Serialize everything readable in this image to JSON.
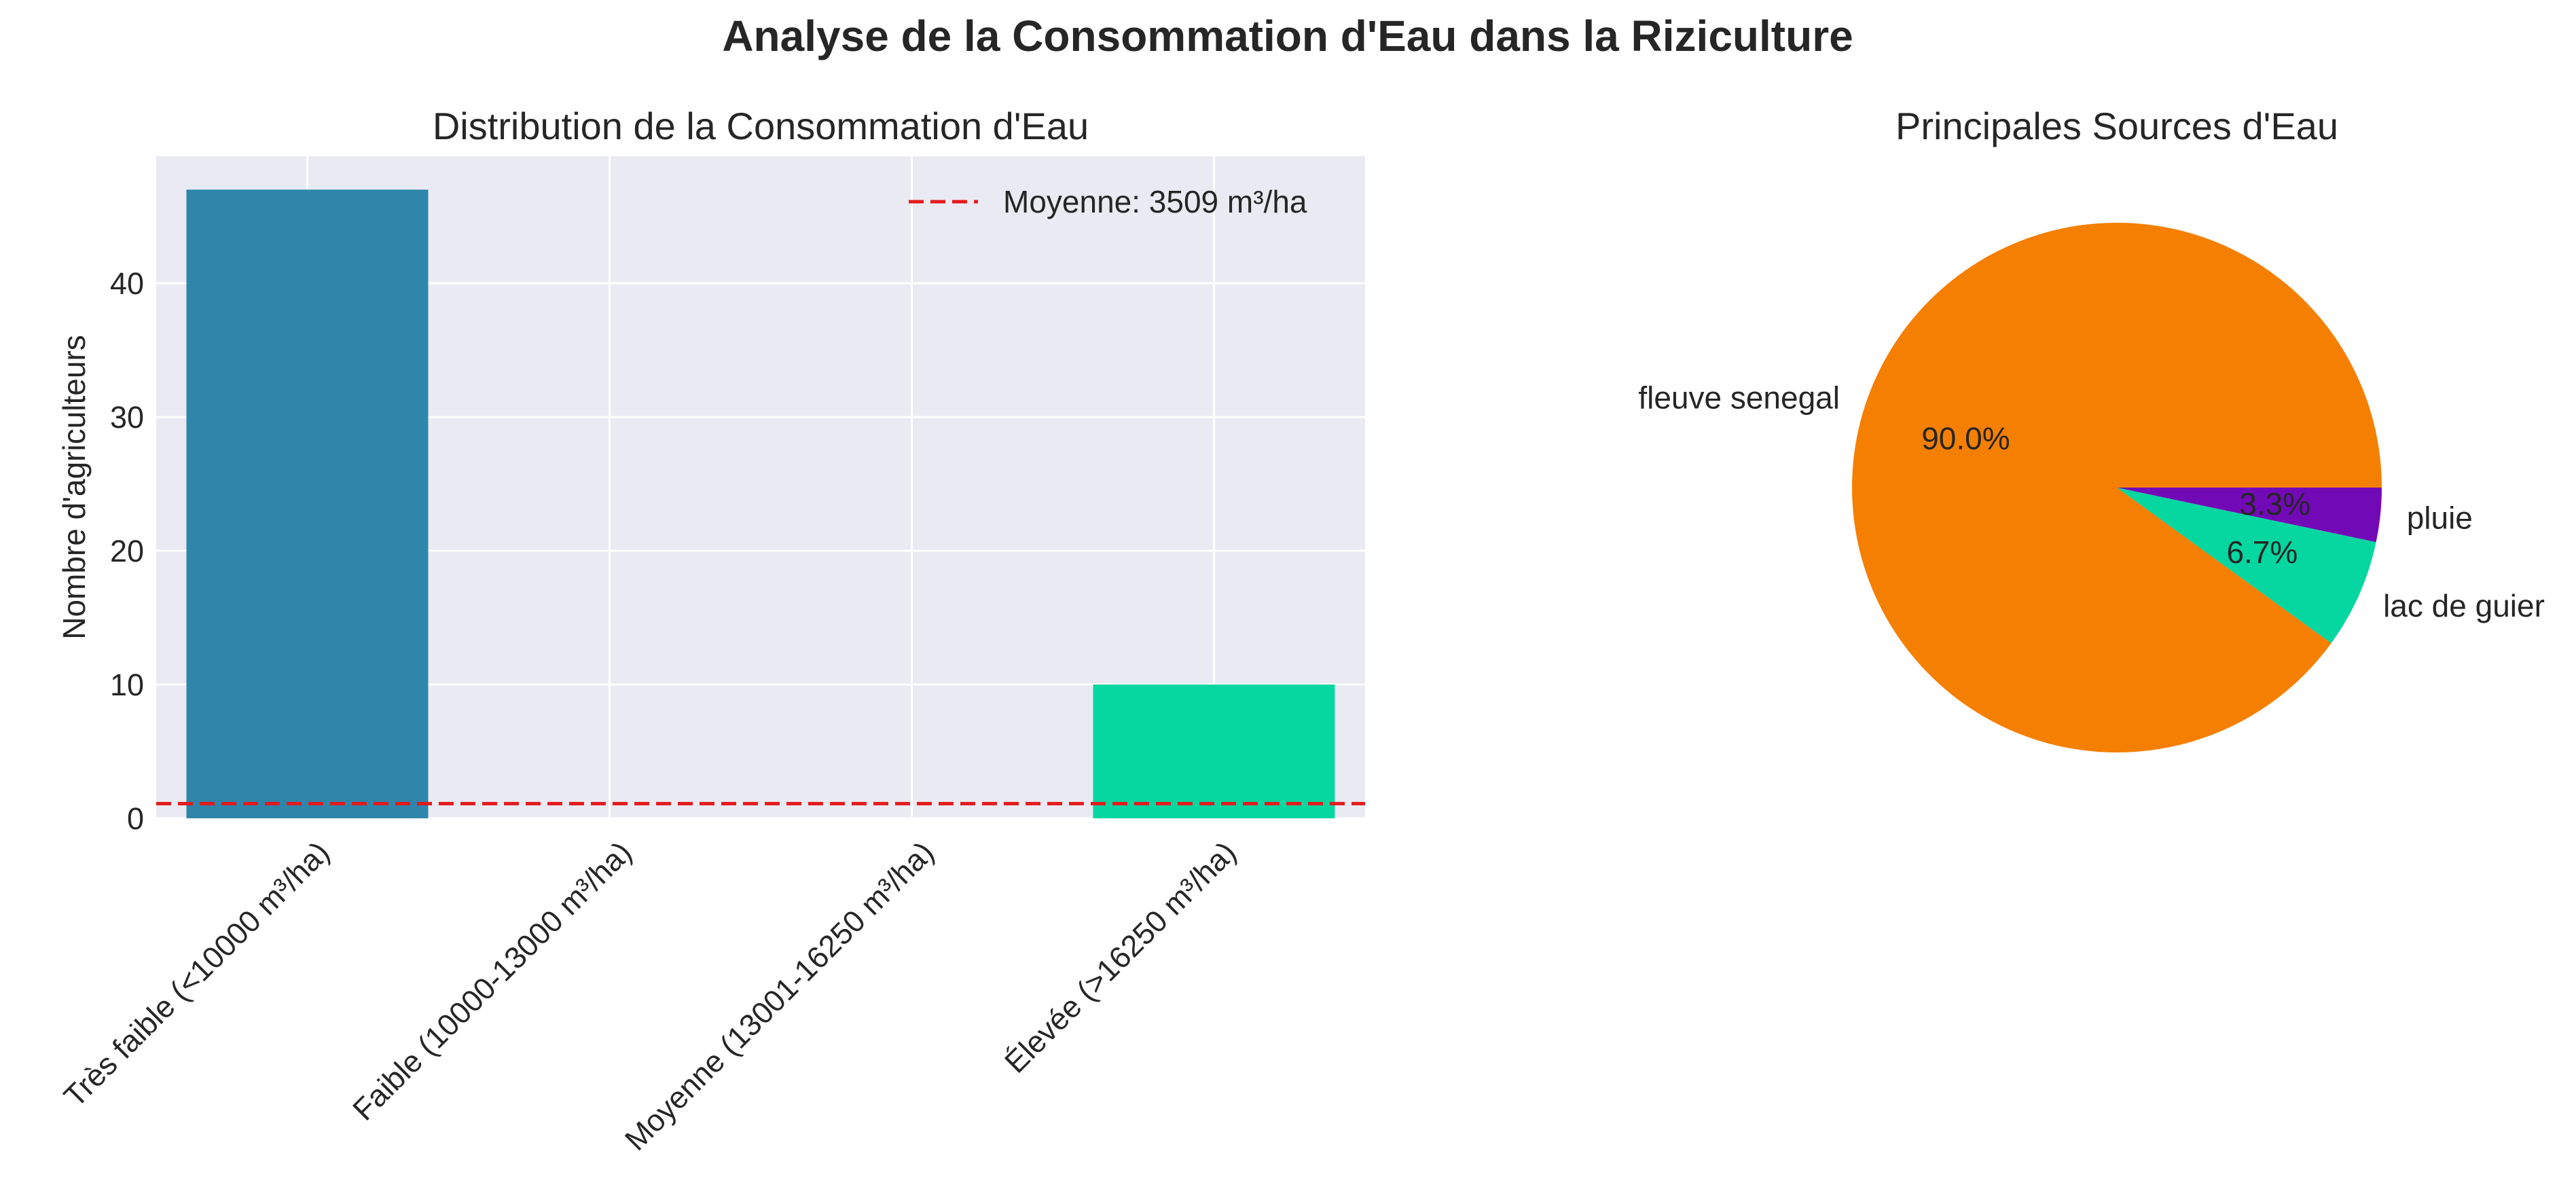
{
  "suptitle": "Analyse de la Consommation d'Eau dans la Riziculture",
  "colors": {
    "axes_bg": "#eaeaf2",
    "grid": "#ffffff",
    "text": "#262626",
    "mean_line": "#e31a1c"
  },
  "chart_data": [
    {
      "type": "bar",
      "title": "Distribution de la Consommation d'Eau",
      "xlabel": "",
      "ylabel": "Nombre d'agriculteurs",
      "categories": [
        "Très faible (<10000 m³/ha)",
        "Faible (10000-13000 m³/ha)",
        "Moyenne (13001-16250 m³/ha)",
        "Élevée (>16250 m³/ha)"
      ],
      "values": [
        47,
        0,
        0,
        10
      ],
      "bar_colors": [
        "#2e86ab",
        "#a23b72",
        "#f18f01",
        "#06d6a0"
      ],
      "ylim": [
        0,
        49.5
      ],
      "yticks": [
        0,
        10,
        20,
        30,
        40
      ],
      "reference_line": {
        "y": 1.1,
        "label": "Moyenne: 3509 m³/ha",
        "style": "dashed"
      },
      "legend_position": "top-right",
      "grid": true
    },
    {
      "type": "pie",
      "title": "Principales Sources d'Eau",
      "labels": [
        "fleuve senegal",
        "lac de guier",
        "pluie"
      ],
      "values": [
        90.0,
        6.7,
        3.3
      ],
      "pct_labels": [
        "90.0%",
        "6.7%",
        "3.3%"
      ],
      "colors": [
        "#f57f00",
        "#06d6a0",
        "#7209b7"
      ],
      "start_angle": 0,
      "direction": "counterclockwise"
    }
  ]
}
